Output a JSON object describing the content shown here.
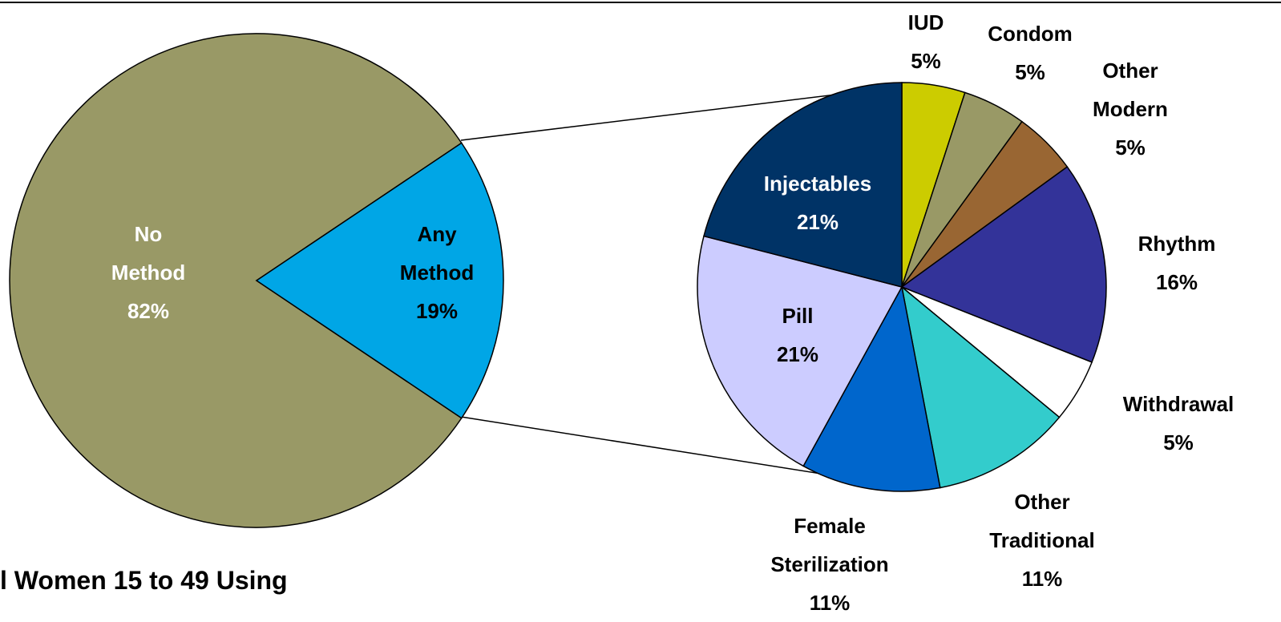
{
  "chart_data": [
    {
      "type": "pie",
      "title": "l Women 15 to 49 Using",
      "categories": [
        "No Method",
        "Any Method"
      ],
      "values": [
        82,
        19
      ],
      "value_labels": [
        "82%",
        "19%"
      ],
      "colors": [
        "#999966",
        "#00a6e6"
      ]
    },
    {
      "type": "pie",
      "categories": [
        "IUD",
        "Condom",
        "Other Modern",
        "Rhythm",
        "Withdrawal",
        "Other Traditional",
        "Female Sterilization",
        "Pill",
        "Injectables"
      ],
      "values": [
        5,
        5,
        5,
        16,
        5,
        11,
        11,
        21,
        21
      ],
      "value_labels": [
        "5%",
        "5%",
        "5%",
        "16%",
        "5%",
        "11%",
        "11%",
        "21%",
        "21%"
      ],
      "colors": [
        "#cccc00",
        "#999966",
        "#996633",
        "#333399",
        "#ffffff",
        "#33cccc",
        "#0066cc",
        "#ccccff",
        "#003366"
      ]
    }
  ]
}
